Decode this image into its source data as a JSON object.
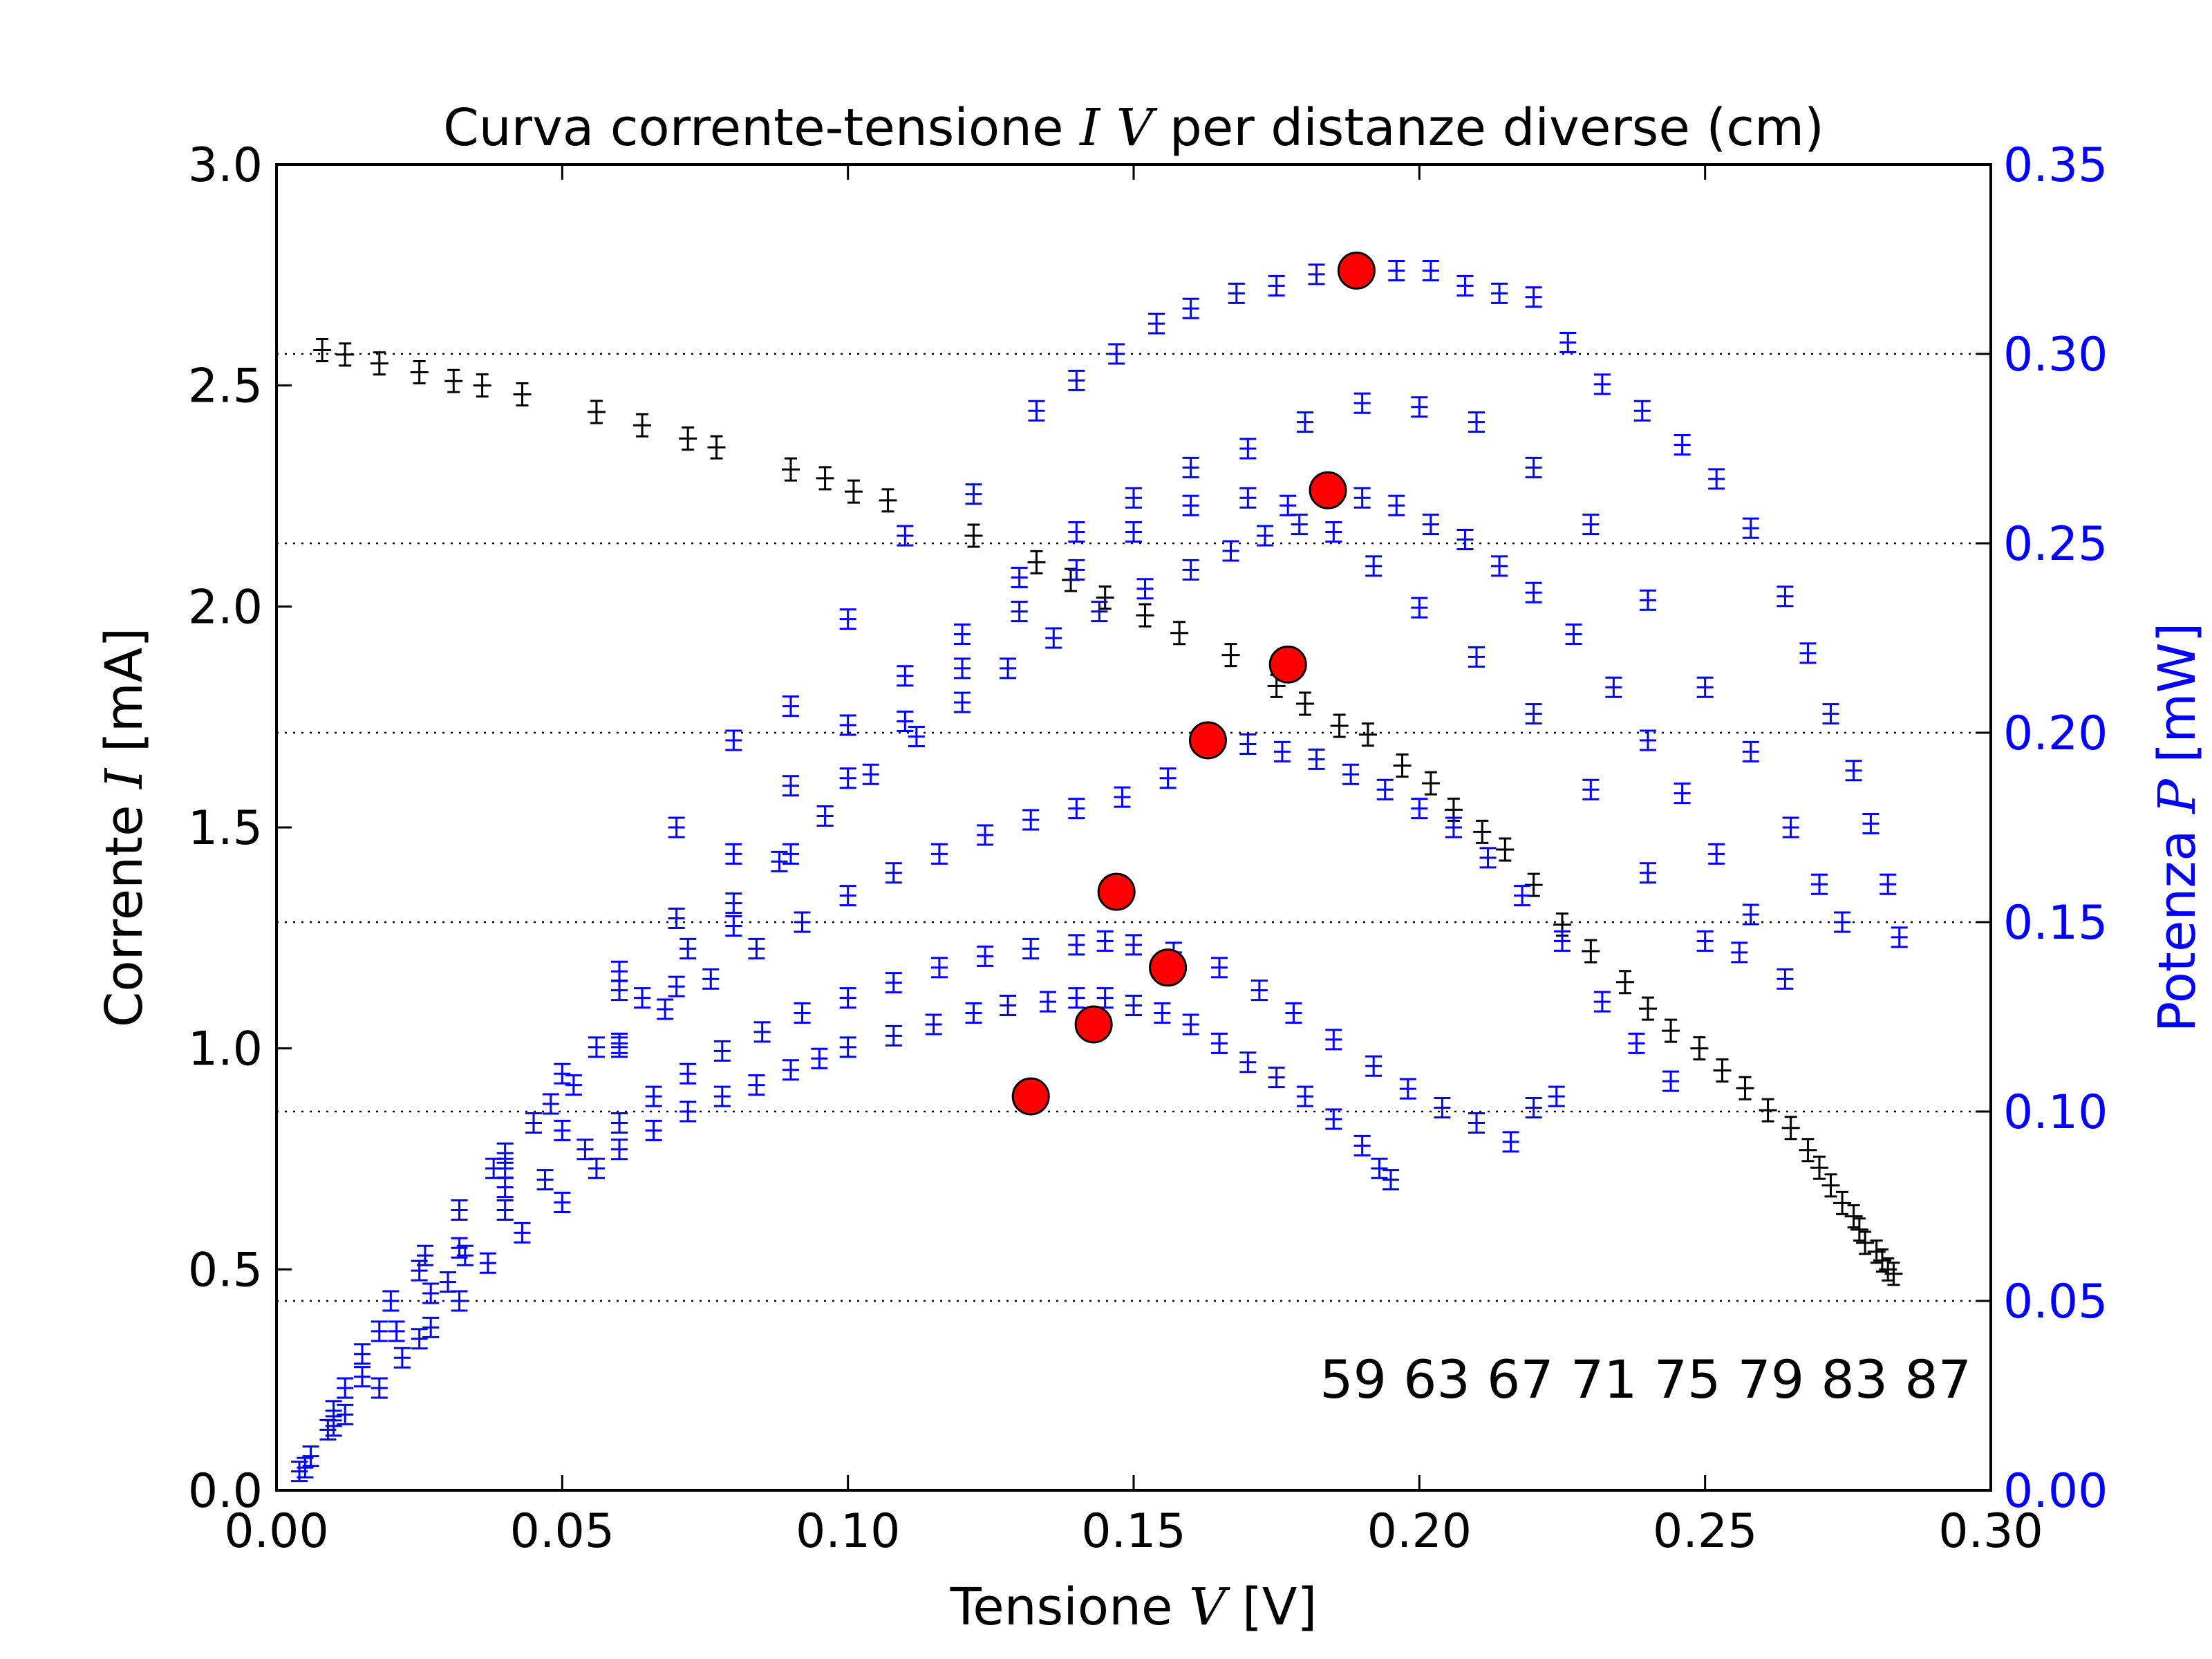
{
  "chart_data": {
    "type": "scatter",
    "title": {
      "pre": "Curva corrente-tensione ",
      "math": "I V",
      "post": " per distanze diverse (cm)"
    },
    "xlabel": {
      "pre": "Tensione ",
      "math": "V",
      "post": " [V]"
    },
    "ylabel_left": {
      "pre": "Corrente ",
      "math": "I",
      "post": " [mA]"
    },
    "ylabel_right": {
      "pre": "Potenza ",
      "math": "P",
      "post": " [mW]"
    },
    "xlim": [
      0.0,
      0.3
    ],
    "ylim_left": [
      0.0,
      3.0
    ],
    "ylim_right": [
      0.0,
      0.35
    ],
    "xticks": [
      "0.00",
      "0.05",
      "0.10",
      "0.15",
      "0.20",
      "0.25",
      "0.30"
    ],
    "yticks_left": [
      "0.0",
      "0.5",
      "1.0",
      "1.5",
      "2.0",
      "2.5",
      "3.0"
    ],
    "yticks_right": [
      "0.00",
      "0.05",
      "0.10",
      "0.15",
      "0.20",
      "0.25",
      "0.30",
      "0.35"
    ],
    "note": "59 63 67 71 75 79 83 87",
    "colors": {
      "current": "#000000",
      "power": "#0000ff",
      "max": "#ff0000",
      "right_axis": "#0000ff"
    },
    "reference_lines_right_axis": [
      0.05,
      0.1,
      0.15,
      0.2,
      0.25,
      0.3
    ],
    "current_series": {
      "axis": "left",
      "points": [
        [
          0.008,
          2.58
        ],
        [
          0.012,
          2.57
        ],
        [
          0.018,
          2.55
        ],
        [
          0.025,
          2.53
        ],
        [
          0.031,
          2.51
        ],
        [
          0.036,
          2.5
        ],
        [
          0.043,
          2.48
        ],
        [
          0.056,
          2.44
        ],
        [
          0.064,
          2.41
        ],
        [
          0.072,
          2.38
        ],
        [
          0.077,
          2.36
        ],
        [
          0.09,
          2.31
        ],
        [
          0.096,
          2.29
        ],
        [
          0.101,
          2.26
        ],
        [
          0.107,
          2.24
        ],
        [
          0.122,
          2.16
        ],
        [
          0.133,
          2.1
        ],
        [
          0.139,
          2.06
        ],
        [
          0.145,
          2.02
        ],
        [
          0.152,
          1.98
        ],
        [
          0.158,
          1.94
        ],
        [
          0.167,
          1.89
        ],
        [
          0.175,
          1.82
        ],
        [
          0.18,
          1.78
        ],
        [
          0.186,
          1.73
        ],
        [
          0.191,
          1.71
        ],
        [
          0.197,
          1.64
        ],
        [
          0.202,
          1.6
        ],
        [
          0.206,
          1.54
        ],
        [
          0.211,
          1.49
        ],
        [
          0.215,
          1.45
        ],
        [
          0.22,
          1.37
        ],
        [
          0.225,
          1.28
        ],
        [
          0.23,
          1.22
        ],
        [
          0.236,
          1.15
        ],
        [
          0.24,
          1.09
        ],
        [
          0.244,
          1.04
        ],
        [
          0.249,
          1.0
        ],
        [
          0.253,
          0.95
        ],
        [
          0.257,
          0.91
        ],
        [
          0.261,
          0.86
        ],
        [
          0.265,
          0.82
        ],
        [
          0.268,
          0.77
        ],
        [
          0.27,
          0.73
        ],
        [
          0.272,
          0.69
        ],
        [
          0.274,
          0.65
        ],
        [
          0.276,
          0.62
        ],
        [
          0.277,
          0.59
        ],
        [
          0.278,
          0.56
        ],
        [
          0.28,
          0.54
        ],
        [
          0.281,
          0.52
        ],
        [
          0.282,
          0.5
        ],
        [
          0.283,
          0.49
        ]
      ]
    },
    "power_series": [
      {
        "distance": "87",
        "axis": "right",
        "points": [
          [
            0.004,
            0.005
          ],
          [
            0.006,
            0.009
          ],
          [
            0.009,
            0.016
          ],
          [
            0.012,
            0.02
          ],
          [
            0.018,
            0.027
          ],
          [
            0.022,
            0.035
          ],
          [
            0.027,
            0.043
          ],
          [
            0.032,
            0.05
          ],
          [
            0.037,
            0.06
          ],
          [
            0.043,
            0.068
          ],
          [
            0.05,
            0.076
          ],
          [
            0.056,
            0.085
          ],
          [
            0.06,
            0.09
          ],
          [
            0.066,
            0.095
          ],
          [
            0.072,
            0.1
          ],
          [
            0.078,
            0.104
          ],
          [
            0.084,
            0.107
          ],
          [
            0.09,
            0.111
          ],
          [
            0.095,
            0.114
          ],
          [
            0.1,
            0.117
          ],
          [
            0.108,
            0.12
          ],
          [
            0.115,
            0.123
          ],
          [
            0.122,
            0.126
          ],
          [
            0.128,
            0.128
          ],
          [
            0.135,
            0.129
          ],
          [
            0.14,
            0.13
          ],
          [
            0.145,
            0.13
          ],
          [
            0.15,
            0.128
          ],
          [
            0.155,
            0.126
          ],
          [
            0.16,
            0.123
          ],
          [
            0.165,
            0.118
          ],
          [
            0.17,
            0.113
          ],
          [
            0.175,
            0.109
          ],
          [
            0.18,
            0.104
          ],
          [
            0.185,
            0.098
          ],
          [
            0.19,
            0.091
          ],
          [
            0.193,
            0.085
          ],
          [
            0.195,
            0.082
          ]
        ]
      },
      {
        "distance": "83",
        "axis": "right",
        "points": [
          [
            0.005,
            0.006
          ],
          [
            0.01,
            0.017
          ],
          [
            0.015,
            0.03
          ],
          [
            0.021,
            0.042
          ],
          [
            0.027,
            0.052
          ],
          [
            0.033,
            0.062
          ],
          [
            0.04,
            0.074
          ],
          [
            0.047,
            0.082
          ],
          [
            0.054,
            0.09
          ],
          [
            0.06,
            0.097
          ],
          [
            0.066,
            0.104
          ],
          [
            0.072,
            0.11
          ],
          [
            0.078,
            0.116
          ],
          [
            0.085,
            0.121
          ],
          [
            0.092,
            0.126
          ],
          [
            0.1,
            0.13
          ],
          [
            0.108,
            0.134
          ],
          [
            0.116,
            0.138
          ],
          [
            0.124,
            0.141
          ],
          [
            0.132,
            0.143
          ],
          [
            0.14,
            0.144
          ],
          [
            0.145,
            0.145
          ],
          [
            0.15,
            0.144
          ],
          [
            0.157,
            0.142
          ],
          [
            0.165,
            0.138
          ],
          [
            0.172,
            0.132
          ],
          [
            0.178,
            0.126
          ],
          [
            0.185,
            0.119
          ],
          [
            0.192,
            0.112
          ],
          [
            0.198,
            0.106
          ],
          [
            0.204,
            0.101
          ],
          [
            0.21,
            0.097
          ],
          [
            0.216,
            0.092
          ],
          [
            0.22,
            0.101
          ],
          [
            0.224,
            0.104
          ]
        ]
      },
      {
        "distance": "79",
        "axis": "right",
        "points": [
          [
            0.01,
            0.021
          ],
          [
            0.015,
            0.036
          ],
          [
            0.02,
            0.05
          ],
          [
            0.026,
            0.062
          ],
          [
            0.032,
            0.074
          ],
          [
            0.038,
            0.085
          ],
          [
            0.045,
            0.097
          ],
          [
            0.052,
            0.107
          ],
          [
            0.06,
            0.118
          ],
          [
            0.068,
            0.127
          ],
          [
            0.076,
            0.135
          ],
          [
            0.084,
            0.143
          ],
          [
            0.092,
            0.15
          ],
          [
            0.1,
            0.157
          ],
          [
            0.108,
            0.163
          ],
          [
            0.116,
            0.168
          ],
          [
            0.124,
            0.173
          ],
          [
            0.132,
            0.177
          ],
          [
            0.14,
            0.18
          ],
          [
            0.148,
            0.183
          ],
          [
            0.156,
            0.188
          ],
          [
            0.163,
            0.197
          ],
          [
            0.17,
            0.197
          ],
          [
            0.176,
            0.195
          ],
          [
            0.182,
            0.193
          ],
          [
            0.188,
            0.189
          ],
          [
            0.194,
            0.185
          ],
          [
            0.2,
            0.18
          ],
          [
            0.206,
            0.175
          ],
          [
            0.212,
            0.167
          ],
          [
            0.218,
            0.157
          ],
          [
            0.225,
            0.145
          ],
          [
            0.232,
            0.129
          ],
          [
            0.238,
            0.118
          ],
          [
            0.244,
            0.108
          ]
        ]
      },
      {
        "distance": "75",
        "axis": "right",
        "points": [
          [
            0.012,
            0.027
          ],
          [
            0.018,
            0.042
          ],
          [
            0.025,
            0.058
          ],
          [
            0.032,
            0.074
          ],
          [
            0.04,
            0.089
          ],
          [
            0.048,
            0.102
          ],
          [
            0.056,
            0.117
          ],
          [
            0.064,
            0.13
          ],
          [
            0.072,
            0.143
          ],
          [
            0.08,
            0.155
          ],
          [
            0.088,
            0.166
          ],
          [
            0.096,
            0.178
          ],
          [
            0.104,
            0.189
          ],
          [
            0.112,
            0.199
          ],
          [
            0.12,
            0.208
          ],
          [
            0.128,
            0.217
          ],
          [
            0.136,
            0.225
          ],
          [
            0.144,
            0.232
          ],
          [
            0.152,
            0.238
          ],
          [
            0.16,
            0.243
          ],
          [
            0.167,
            0.248
          ],
          [
            0.173,
            0.252
          ],
          [
            0.179,
            0.255
          ],
          [
            0.184,
            0.263
          ],
          [
            0.19,
            0.262
          ],
          [
            0.196,
            0.26
          ],
          [
            0.202,
            0.255
          ],
          [
            0.208,
            0.251
          ],
          [
            0.214,
            0.244
          ],
          [
            0.22,
            0.237
          ],
          [
            0.227,
            0.226
          ],
          [
            0.234,
            0.212
          ],
          [
            0.24,
            0.198
          ],
          [
            0.246,
            0.184
          ],
          [
            0.252,
            0.168
          ],
          [
            0.258,
            0.152
          ],
          [
            0.264,
            0.135
          ]
        ]
      },
      {
        "distance": "71",
        "axis": "right",
        "points": [
          [
            0.025,
            0.04
          ],
          [
            0.032,
            0.064
          ],
          [
            0.04,
            0.08
          ],
          [
            0.05,
            0.095
          ],
          [
            0.06,
            0.117
          ],
          [
            0.07,
            0.133
          ],
          [
            0.08,
            0.149
          ],
          [
            0.09,
            0.168
          ],
          [
            0.1,
            0.188
          ],
          [
            0.11,
            0.203
          ],
          [
            0.12,
            0.217
          ],
          [
            0.13,
            0.232
          ],
          [
            0.14,
            0.243
          ],
          [
            0.15,
            0.253
          ],
          [
            0.16,
            0.26
          ],
          [
            0.17,
            0.262
          ],
          [
            0.177,
            0.26
          ],
          [
            0.185,
            0.253
          ],
          [
            0.192,
            0.244
          ],
          [
            0.2,
            0.233
          ],
          [
            0.21,
            0.22
          ],
          [
            0.22,
            0.205
          ],
          [
            0.23,
            0.185
          ],
          [
            0.24,
            0.163
          ],
          [
            0.25,
            0.145
          ],
          [
            0.256,
            0.142
          ]
        ]
      },
      {
        "distance": "67",
        "axis": "right",
        "points": [
          [
            0.03,
            0.055
          ],
          [
            0.04,
            0.085
          ],
          [
            0.05,
            0.11
          ],
          [
            0.06,
            0.132
          ],
          [
            0.07,
            0.151
          ],
          [
            0.08,
            0.168
          ],
          [
            0.09,
            0.186
          ],
          [
            0.1,
            0.202
          ],
          [
            0.11,
            0.215
          ],
          [
            0.12,
            0.226
          ],
          [
            0.13,
            0.241
          ],
          [
            0.14,
            0.253
          ],
          [
            0.15,
            0.262
          ],
          [
            0.16,
            0.27
          ],
          [
            0.17,
            0.275
          ],
          [
            0.18,
            0.282
          ],
          [
            0.19,
            0.287
          ],
          [
            0.2,
            0.286
          ],
          [
            0.21,
            0.282
          ],
          [
            0.22,
            0.27
          ],
          [
            0.23,
            0.255
          ],
          [
            0.24,
            0.235
          ],
          [
            0.25,
            0.212
          ],
          [
            0.258,
            0.195
          ],
          [
            0.265,
            0.175
          ],
          [
            0.27,
            0.16
          ],
          [
            0.274,
            0.15
          ]
        ]
      },
      {
        "distance": "63",
        "axis": "right",
        "points": [
          [
            0.06,
            0.137
          ],
          [
            0.07,
            0.175
          ],
          [
            0.08,
            0.198
          ],
          [
            0.09,
            0.207
          ],
          [
            0.1,
            0.23
          ],
          [
            0.11,
            0.252
          ],
          [
            0.122,
            0.263
          ],
          [
            0.133,
            0.285
          ],
          [
            0.14,
            0.293
          ],
          [
            0.147,
            0.3
          ],
          [
            0.154,
            0.308
          ],
          [
            0.16,
            0.312
          ],
          [
            0.168,
            0.316
          ],
          [
            0.175,
            0.318
          ],
          [
            0.182,
            0.321
          ],
          [
            0.189,
            0.322
          ],
          [
            0.196,
            0.322
          ],
          [
            0.202,
            0.322
          ],
          [
            0.208,
            0.318
          ],
          [
            0.214,
            0.316
          ],
          [
            0.22,
            0.315
          ],
          [
            0.226,
            0.303
          ],
          [
            0.232,
            0.292
          ],
          [
            0.239,
            0.285
          ],
          [
            0.246,
            0.276
          ],
          [
            0.252,
            0.267
          ],
          [
            0.258,
            0.254
          ],
          [
            0.264,
            0.236
          ],
          [
            0.268,
            0.221
          ],
          [
            0.272,
            0.205
          ],
          [
            0.276,
            0.19
          ],
          [
            0.279,
            0.176
          ],
          [
            0.282,
            0.16
          ],
          [
            0.284,
            0.146
          ]
        ]
      }
    ],
    "max_power_points": [
      {
        "v": 0.132,
        "p": 0.104
      },
      {
        "v": 0.143,
        "p": 0.123
      },
      {
        "v": 0.156,
        "p": 0.138
      },
      {
        "v": 0.147,
        "p": 0.158
      },
      {
        "v": 0.163,
        "p": 0.198
      },
      {
        "v": 0.177,
        "p": 0.218
      },
      {
        "v": 0.184,
        "p": 0.264
      },
      {
        "v": 0.189,
        "p": 0.322
      }
    ]
  }
}
